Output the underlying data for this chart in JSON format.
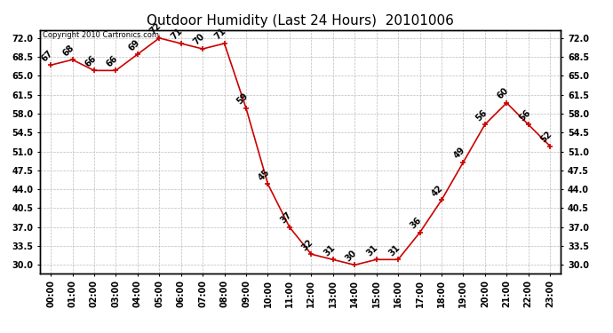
{
  "title": "Outdoor Humidity (Last 24 Hours)  20101006",
  "copyright": "Copyright 2010 Cartronics.com",
  "x_labels": [
    "00:00",
    "01:00",
    "02:00",
    "03:00",
    "04:00",
    "05:00",
    "06:00",
    "07:00",
    "08:00",
    "09:00",
    "10:00",
    "11:00",
    "12:00",
    "13:00",
    "14:00",
    "15:00",
    "16:00",
    "17:00",
    "18:00",
    "19:00",
    "20:00",
    "21:00",
    "22:00",
    "23:00"
  ],
  "y_values": [
    67,
    68,
    66,
    66,
    69,
    72,
    71,
    70,
    71,
    59,
    45,
    37,
    32,
    31,
    30,
    31,
    31,
    36,
    42,
    49,
    56,
    60,
    56,
    52
  ],
  "ylim": [
    28.5,
    73.5
  ],
  "yticks": [
    30.0,
    33.5,
    37.0,
    40.5,
    44.0,
    47.5,
    51.0,
    54.5,
    58.0,
    61.5,
    65.0,
    68.5,
    72.0
  ],
  "line_color": "#cc0000",
  "bg_color": "#ffffff",
  "grid_color": "#bbbbbb",
  "title_fontsize": 11,
  "tick_fontsize": 7,
  "annot_fontsize": 7,
  "copyright_fontsize": 6
}
